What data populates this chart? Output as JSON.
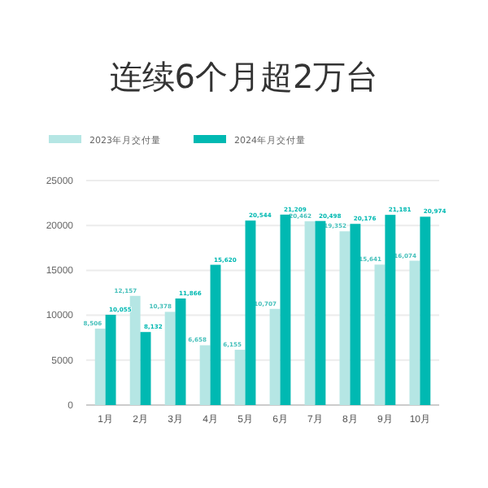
{
  "chart_data": {
    "type": "bar",
    "title": "连续6个月超2万台",
    "categories": [
      "1月",
      "2月",
      "3月",
      "4月",
      "5月",
      "6月",
      "7月",
      "8月",
      "9月",
      "10月"
    ],
    "series": [
      {
        "name": "2023年月交付量",
        "color": "#b5e6e4",
        "values": [
          8506,
          12157,
          10378,
          6658,
          6155,
          10707,
          20462,
          19352,
          15641,
          16074
        ],
        "value_labels": [
          "8,506",
          "12,157",
          "10,378",
          "6,658",
          "6,155",
          "10,707",
          "20,462",
          "19,352",
          "15,641",
          "16,074"
        ]
      },
      {
        "name": "2024年月交付量",
        "color": "#00b9b2",
        "values": [
          10055,
          8132,
          11866,
          15620,
          20544,
          21209,
          20498,
          20176,
          21181,
          20974
        ],
        "value_labels": [
          "10,055",
          "8,132",
          "11,866",
          "15,620",
          "20,544",
          "21,209",
          "20,498",
          "20,176",
          "21,181",
          "20,974"
        ]
      }
    ],
    "ylim": [
      0,
      25000
    ],
    "yticks": [
      0,
      5000,
      10000,
      15000,
      20000,
      25000
    ],
    "grid": "y",
    "legend": "top left"
  }
}
